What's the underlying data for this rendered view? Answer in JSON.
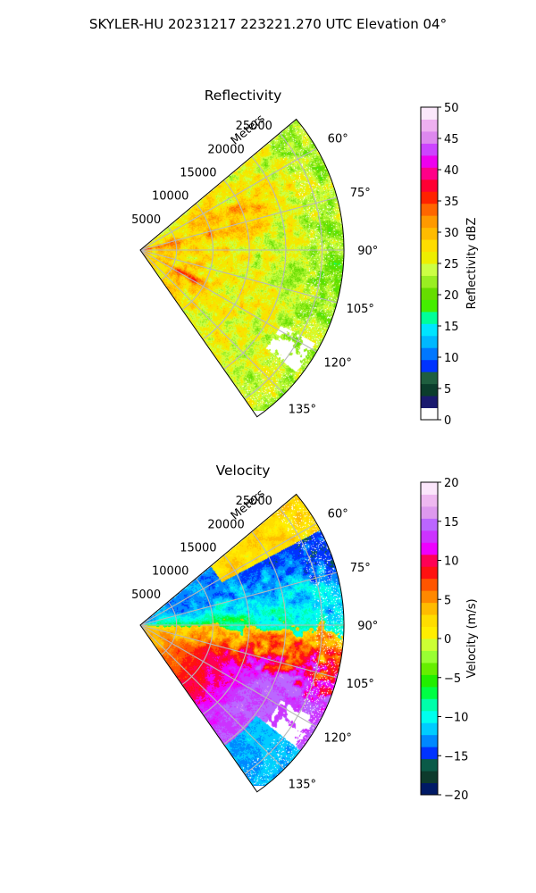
{
  "figure_title": "SKYLER-HU  20231217  223221.270 UTC Elevation 04°",
  "colors": {
    "reflectivity_scale": [
      "#ffffff",
      "#1a1a6e",
      "#0b3d2c",
      "#1f5e3f",
      "#0033ff",
      "#0077ff",
      "#00b8ff",
      "#00e5ff",
      "#00ff99",
      "#44ee00",
      "#66dd00",
      "#99ee22",
      "#ccff44",
      "#eeee00",
      "#ffdd00",
      "#ffbb00",
      "#ff9900",
      "#ff6600",
      "#ff2200",
      "#ff0033",
      "#ff0088",
      "#ee00ee",
      "#cc44ff",
      "#dd88ee",
      "#eeb0f0",
      "#fbe8fb"
    ],
    "velocity_scale": [
      "#001a66",
      "#0d3a2c",
      "#0a5a48",
      "#0033ff",
      "#0088ff",
      "#00ccff",
      "#00ffee",
      "#00ffaa",
      "#00ff44",
      "#22ee00",
      "#66ee00",
      "#99ff33",
      "#ccff33",
      "#ffee00",
      "#ffdd00",
      "#ffbb00",
      "#ff8800",
      "#ff5500",
      "#ff1111",
      "#ff0055",
      "#ee00ff",
      "#cc33ff",
      "#bb66ff",
      "#dd99ee",
      "#eeb8f0",
      "#fbe6fb"
    ]
  },
  "chart_data": [
    {
      "type": "heatmap",
      "title": "Reflectivity",
      "projection": "polar sector (PPI)",
      "range_axis_label": "Meters",
      "range_ticks": [
        "5000",
        "10000",
        "15000",
        "20000",
        "25000"
      ],
      "range_ticks_values": [
        5000,
        10000,
        15000,
        20000,
        25000
      ],
      "rmax": 28000,
      "azimuth_range_deg": [
        50,
        145
      ],
      "azimuth_ticks": [
        "60°",
        "75°",
        "90°",
        "105°",
        "120°",
        "135°"
      ],
      "azimuth_ticks_values": [
        60,
        75,
        90,
        105,
        120,
        135
      ],
      "grid": true,
      "colorbar": {
        "label": "Reflectivity dBZ",
        "range": [
          0,
          50
        ],
        "ticks": [
          "0",
          "5",
          "10",
          "15",
          "20",
          "25",
          "30",
          "35",
          "40",
          "45",
          "50"
        ]
      },
      "field_description_values": {
        "dominant_dbz_range": [
          20,
          30
        ],
        "max_dbz_near_radar": 38
      }
    },
    {
      "type": "heatmap",
      "title": "Velocity",
      "projection": "polar sector (PPI)",
      "range_axis_label": "Meters",
      "range_ticks": [
        "5000",
        "10000",
        "15000",
        "20000",
        "25000"
      ],
      "range_ticks_values": [
        5000,
        10000,
        15000,
        20000,
        25000
      ],
      "rmax": 28000,
      "azimuth_range_deg": [
        50,
        145
      ],
      "azimuth_ticks": [
        "60°",
        "75°",
        "90°",
        "105°",
        "120°",
        "135°"
      ],
      "azimuth_ticks_values": [
        60,
        75,
        90,
        105,
        120,
        135
      ],
      "grid": true,
      "colorbar": {
        "label": "Velocity (m/s)",
        "range": [
          -20,
          20
        ],
        "ticks": [
          "−20",
          "−15",
          "−10",
          "−5",
          "0",
          "5",
          "10",
          "15",
          "20"
        ]
      }
    }
  ]
}
